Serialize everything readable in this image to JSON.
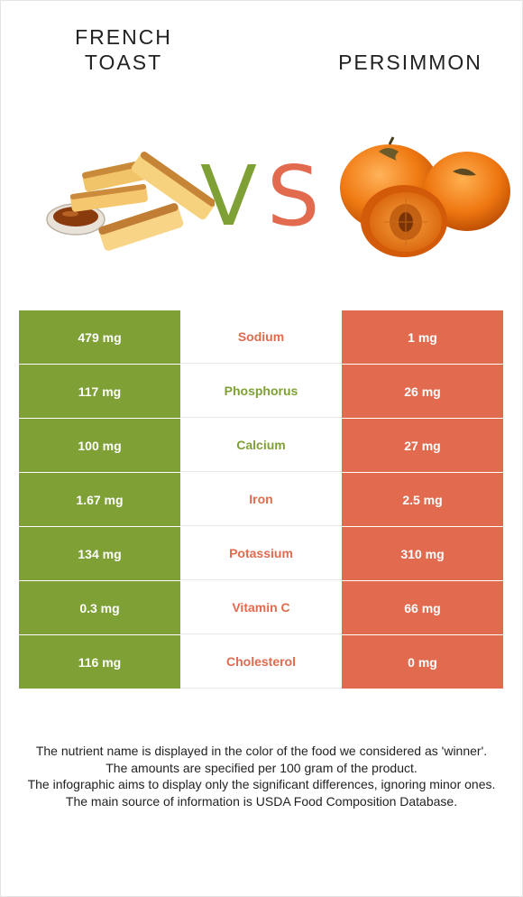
{
  "left_food": {
    "title_line1": "FRENCH",
    "title_line2": "TOAST"
  },
  "right_food": {
    "title": "PERSIMMON"
  },
  "vs": {
    "v": "V",
    "s": "S"
  },
  "colors": {
    "left": "#7ea035",
    "right": "#e26b4f"
  },
  "rows": [
    {
      "left": "479 mg",
      "nutrient": "Sodium",
      "right": "1 mg",
      "winner": "right"
    },
    {
      "left": "117 mg",
      "nutrient": "Phosphorus",
      "right": "26 mg",
      "winner": "left"
    },
    {
      "left": "100 mg",
      "nutrient": "Calcium",
      "right": "27 mg",
      "winner": "left"
    },
    {
      "left": "1.67 mg",
      "nutrient": "Iron",
      "right": "2.5 mg",
      "winner": "right"
    },
    {
      "left": "134 mg",
      "nutrient": "Potassium",
      "right": "310 mg",
      "winner": "right"
    },
    {
      "left": "0.3 mg",
      "nutrient": "Vitamin C",
      "right": "66 mg",
      "winner": "right"
    },
    {
      "left": "116 mg",
      "nutrient": "Cholesterol",
      "right": "0 mg",
      "winner": "right"
    }
  ],
  "footer": {
    "line1": "The nutrient name is displayed in the color of the food we considered as 'winner'.",
    "line2": "The amounts are specified per 100 gram of the product.",
    "line3": "The infographic aims to display only the significant differences, ignoring minor ones.",
    "line4": "The main source of information is USDA Food Composition Database."
  }
}
